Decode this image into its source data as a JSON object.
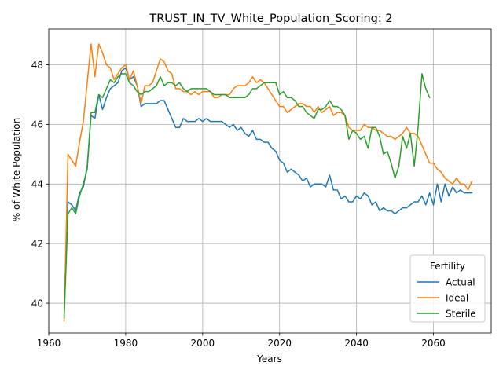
{
  "chart_data": {
    "type": "line",
    "title": "TRUST_IN_TV_White_Population_Scoring: 2",
    "xlabel": "Years",
    "ylabel": "% of White Population",
    "xlim": [
      1960,
      2075
    ],
    "ylim": [
      39.0,
      49.2
    ],
    "xticks": [
      1960,
      1980,
      2000,
      2020,
      2040,
      2060
    ],
    "yticks": [
      40,
      42,
      44,
      46,
      48
    ],
    "xtick_labels": [
      "1960",
      "1980",
      "2000",
      "2020",
      "2040",
      "2060"
    ],
    "ytick_labels": [
      "40",
      "42",
      "44",
      "46",
      "48"
    ],
    "grid": true,
    "legend": {
      "title": "Fertility",
      "placement": "lower-right"
    },
    "series": [
      {
        "name": "Actual",
        "color": "#1f77b4",
        "points": [
          [
            1964,
            39.6
          ],
          [
            1965,
            43.4
          ],
          [
            1966,
            43.3
          ],
          [
            1967,
            43.1
          ],
          [
            1968,
            43.7
          ],
          [
            1969,
            43.9
          ],
          [
            1970,
            44.6
          ],
          [
            1971,
            46.3
          ],
          [
            1972,
            46.2
          ],
          [
            1973,
            47.0
          ],
          [
            1974,
            46.5
          ],
          [
            1975,
            46.9
          ],
          [
            1976,
            47.2
          ],
          [
            1977,
            47.3
          ],
          [
            1978,
            47.4
          ],
          [
            1979,
            47.8
          ],
          [
            1980,
            47.9
          ],
          [
            1981,
            47.5
          ],
          [
            1982,
            47.6
          ],
          [
            1983,
            47.3
          ],
          [
            1984,
            46.6
          ],
          [
            1985,
            46.7
          ],
          [
            1986,
            46.7
          ],
          [
            1987,
            46.7
          ],
          [
            1988,
            46.7
          ],
          [
            1989,
            46.8
          ],
          [
            1990,
            46.8
          ],
          [
            1991,
            46.5
          ],
          [
            1992,
            46.2
          ],
          [
            1993,
            45.9
          ],
          [
            1994,
            45.9
          ],
          [
            1995,
            46.2
          ],
          [
            1996,
            46.1
          ],
          [
            1997,
            46.1
          ],
          [
            1998,
            46.1
          ],
          [
            1999,
            46.2
          ],
          [
            2000,
            46.1
          ],
          [
            2001,
            46.2
          ],
          [
            2002,
            46.1
          ],
          [
            2003,
            46.1
          ],
          [
            2004,
            46.1
          ],
          [
            2005,
            46.1
          ],
          [
            2006,
            46.0
          ],
          [
            2007,
            45.9
          ],
          [
            2008,
            46.0
          ],
          [
            2009,
            45.8
          ],
          [
            2010,
            45.9
          ],
          [
            2011,
            45.7
          ],
          [
            2012,
            45.6
          ],
          [
            2013,
            45.8
          ],
          [
            2014,
            45.5
          ],
          [
            2015,
            45.5
          ],
          [
            2016,
            45.4
          ],
          [
            2017,
            45.4
          ],
          [
            2018,
            45.2
          ],
          [
            2019,
            45.1
          ],
          [
            2020,
            44.8
          ],
          [
            2021,
            44.7
          ],
          [
            2022,
            44.4
          ],
          [
            2023,
            44.5
          ],
          [
            2024,
            44.4
          ],
          [
            2025,
            44.3
          ],
          [
            2026,
            44.1
          ],
          [
            2027,
            44.2
          ],
          [
            2028,
            43.9
          ],
          [
            2029,
            44.0
          ],
          [
            2030,
            44.0
          ],
          [
            2031,
            44.0
          ],
          [
            2032,
            43.9
          ],
          [
            2033,
            44.3
          ],
          [
            2034,
            43.8
          ],
          [
            2035,
            43.8
          ],
          [
            2036,
            43.5
          ],
          [
            2037,
            43.6
          ],
          [
            2038,
            43.4
          ],
          [
            2039,
            43.4
          ],
          [
            2040,
            43.6
          ],
          [
            2041,
            43.5
          ],
          [
            2042,
            43.7
          ],
          [
            2043,
            43.6
          ],
          [
            2044,
            43.3
          ],
          [
            2045,
            43.4
          ],
          [
            2046,
            43.1
          ],
          [
            2047,
            43.2
          ],
          [
            2048,
            43.1
          ],
          [
            2049,
            43.1
          ],
          [
            2050,
            43.0
          ],
          [
            2051,
            43.1
          ],
          [
            2052,
            43.2
          ],
          [
            2053,
            43.2
          ],
          [
            2054,
            43.3
          ],
          [
            2055,
            43.4
          ],
          [
            2056,
            43.4
          ],
          [
            2057,
            43.6
          ],
          [
            2058,
            43.3
          ],
          [
            2059,
            43.7
          ],
          [
            2060,
            43.3
          ],
          [
            2061,
            44.0
          ],
          [
            2062,
            43.4
          ],
          [
            2063,
            44.0
          ],
          [
            2064,
            43.6
          ],
          [
            2065,
            43.9
          ],
          [
            2066,
            43.7
          ],
          [
            2067,
            43.8
          ],
          [
            2068,
            43.7
          ],
          [
            2069,
            43.7
          ],
          [
            2070,
            43.7
          ]
        ]
      },
      {
        "name": "Ideal",
        "color": "#ff7f0e",
        "points": [
          [
            1964,
            39.4
          ],
          [
            1965,
            45.0
          ],
          [
            1966,
            44.8
          ],
          [
            1967,
            44.6
          ],
          [
            1968,
            45.4
          ],
          [
            1969,
            46.1
          ],
          [
            1970,
            47.4
          ],
          [
            1971,
            48.7
          ],
          [
            1972,
            47.6
          ],
          [
            1973,
            48.7
          ],
          [
            1974,
            48.4
          ],
          [
            1975,
            48.0
          ],
          [
            1976,
            47.9
          ],
          [
            1977,
            47.5
          ],
          [
            1978,
            47.7
          ],
          [
            1979,
            47.9
          ],
          [
            1980,
            48.0
          ],
          [
            1981,
            47.5
          ],
          [
            1982,
            47.8
          ],
          [
            1983,
            47.3
          ],
          [
            1984,
            46.7
          ],
          [
            1985,
            47.3
          ],
          [
            1986,
            47.3
          ],
          [
            1987,
            47.4
          ],
          [
            1988,
            47.8
          ],
          [
            1989,
            48.2
          ],
          [
            1990,
            48.1
          ],
          [
            1991,
            47.8
          ],
          [
            1992,
            47.7
          ],
          [
            1993,
            47.2
          ],
          [
            1994,
            47.2
          ],
          [
            1995,
            47.1
          ],
          [
            1996,
            47.1
          ],
          [
            1997,
            47.0
          ],
          [
            1998,
            47.1
          ],
          [
            1999,
            47.0
          ],
          [
            2000,
            47.1
          ],
          [
            2001,
            47.1
          ],
          [
            2002,
            47.1
          ],
          [
            2003,
            46.9
          ],
          [
            2004,
            46.9
          ],
          [
            2005,
            47.0
          ],
          [
            2006,
            47.0
          ],
          [
            2007,
            47.0
          ],
          [
            2008,
            47.2
          ],
          [
            2009,
            47.3
          ],
          [
            2010,
            47.3
          ],
          [
            2011,
            47.3
          ],
          [
            2012,
            47.4
          ],
          [
            2013,
            47.6
          ],
          [
            2014,
            47.4
          ],
          [
            2015,
            47.5
          ],
          [
            2016,
            47.4
          ],
          [
            2017,
            47.2
          ],
          [
            2018,
            47.0
          ],
          [
            2019,
            46.8
          ],
          [
            2020,
            46.6
          ],
          [
            2021,
            46.6
          ],
          [
            2022,
            46.4
          ],
          [
            2023,
            46.5
          ],
          [
            2024,
            46.6
          ],
          [
            2025,
            46.7
          ],
          [
            2026,
            46.7
          ],
          [
            2027,
            46.6
          ],
          [
            2028,
            46.6
          ],
          [
            2029,
            46.4
          ],
          [
            2030,
            46.6
          ],
          [
            2031,
            46.4
          ],
          [
            2032,
            46.5
          ],
          [
            2033,
            46.6
          ],
          [
            2034,
            46.3
          ],
          [
            2035,
            46.4
          ],
          [
            2036,
            46.4
          ],
          [
            2037,
            46.3
          ],
          [
            2038,
            45.9
          ],
          [
            2039,
            45.8
          ],
          [
            2040,
            45.8
          ],
          [
            2041,
            45.8
          ],
          [
            2042,
            46.0
          ],
          [
            2043,
            45.9
          ],
          [
            2044,
            45.9
          ],
          [
            2045,
            45.8
          ],
          [
            2046,
            45.8
          ],
          [
            2047,
            45.7
          ],
          [
            2048,
            45.6
          ],
          [
            2049,
            45.6
          ],
          [
            2050,
            45.5
          ],
          [
            2051,
            45.6
          ],
          [
            2052,
            45.7
          ],
          [
            2053,
            45.9
          ],
          [
            2054,
            45.7
          ],
          [
            2055,
            45.7
          ],
          [
            2056,
            45.6
          ],
          [
            2057,
            45.3
          ],
          [
            2058,
            45.0
          ],
          [
            2059,
            44.7
          ],
          [
            2060,
            44.7
          ],
          [
            2061,
            44.5
          ],
          [
            2062,
            44.4
          ],
          [
            2063,
            44.2
          ],
          [
            2064,
            44.1
          ],
          [
            2065,
            44.0
          ],
          [
            2066,
            44.2
          ],
          [
            2067,
            44.0
          ],
          [
            2068,
            44.0
          ],
          [
            2069,
            43.8
          ],
          [
            2070,
            44.1
          ]
        ]
      },
      {
        "name": "Sterile",
        "color": "#2ca02c",
        "points": [
          [
            1964,
            39.5
          ],
          [
            1965,
            43.0
          ],
          [
            1966,
            43.2
          ],
          [
            1967,
            43.0
          ],
          [
            1968,
            43.6
          ],
          [
            1969,
            44.0
          ],
          [
            1970,
            44.5
          ],
          [
            1971,
            46.4
          ],
          [
            1972,
            46.4
          ],
          [
            1973,
            47.0
          ],
          [
            1974,
            46.9
          ],
          [
            1975,
            47.2
          ],
          [
            1976,
            47.5
          ],
          [
            1977,
            47.4
          ],
          [
            1978,
            47.6
          ],
          [
            1979,
            47.7
          ],
          [
            1980,
            47.7
          ],
          [
            1981,
            47.4
          ],
          [
            1982,
            47.3
          ],
          [
            1983,
            47.1
          ],
          [
            1984,
            47.0
          ],
          [
            1985,
            47.1
          ],
          [
            1986,
            47.1
          ],
          [
            1987,
            47.2
          ],
          [
            1988,
            47.3
          ],
          [
            1989,
            47.6
          ],
          [
            1990,
            47.3
          ],
          [
            1991,
            47.4
          ],
          [
            1992,
            47.4
          ],
          [
            1993,
            47.3
          ],
          [
            1994,
            47.4
          ],
          [
            1995,
            47.2
          ],
          [
            1996,
            47.1
          ],
          [
            1997,
            47.2
          ],
          [
            1998,
            47.2
          ],
          [
            1999,
            47.2
          ],
          [
            2000,
            47.2
          ],
          [
            2001,
            47.2
          ],
          [
            2002,
            47.1
          ],
          [
            2003,
            47.0
          ],
          [
            2004,
            47.0
          ],
          [
            2005,
            47.0
          ],
          [
            2006,
            47.0
          ],
          [
            2007,
            46.9
          ],
          [
            2008,
            46.9
          ],
          [
            2009,
            46.9
          ],
          [
            2010,
            46.9
          ],
          [
            2011,
            46.9
          ],
          [
            2012,
            47.0
          ],
          [
            2013,
            47.2
          ],
          [
            2014,
            47.2
          ],
          [
            2015,
            47.3
          ],
          [
            2016,
            47.4
          ],
          [
            2017,
            47.4
          ],
          [
            2018,
            47.4
          ],
          [
            2019,
            47.4
          ],
          [
            2020,
            47.0
          ],
          [
            2021,
            47.1
          ],
          [
            2022,
            46.9
          ],
          [
            2023,
            46.9
          ],
          [
            2024,
            46.8
          ],
          [
            2025,
            46.6
          ],
          [
            2026,
            46.6
          ],
          [
            2027,
            46.4
          ],
          [
            2028,
            46.3
          ],
          [
            2029,
            46.2
          ],
          [
            2030,
            46.5
          ],
          [
            2031,
            46.5
          ],
          [
            2032,
            46.6
          ],
          [
            2033,
            46.8
          ],
          [
            2034,
            46.6
          ],
          [
            2035,
            46.6
          ],
          [
            2036,
            46.5
          ],
          [
            2037,
            46.3
          ],
          [
            2038,
            45.5
          ],
          [
            2039,
            45.8
          ],
          [
            2040,
            45.7
          ],
          [
            2041,
            45.5
          ],
          [
            2042,
            45.6
          ],
          [
            2043,
            45.2
          ],
          [
            2044,
            45.9
          ],
          [
            2045,
            45.9
          ],
          [
            2046,
            45.6
          ],
          [
            2047,
            45.0
          ],
          [
            2048,
            45.1
          ],
          [
            2049,
            44.7
          ],
          [
            2050,
            44.2
          ],
          [
            2051,
            44.6
          ],
          [
            2052,
            45.6
          ],
          [
            2053,
            45.2
          ],
          [
            2054,
            45.7
          ],
          [
            2055,
            44.6
          ],
          [
            2056,
            45.9
          ],
          [
            2057,
            47.7
          ],
          [
            2058,
            47.2
          ],
          [
            2059,
            46.9
          ]
        ]
      }
    ]
  }
}
